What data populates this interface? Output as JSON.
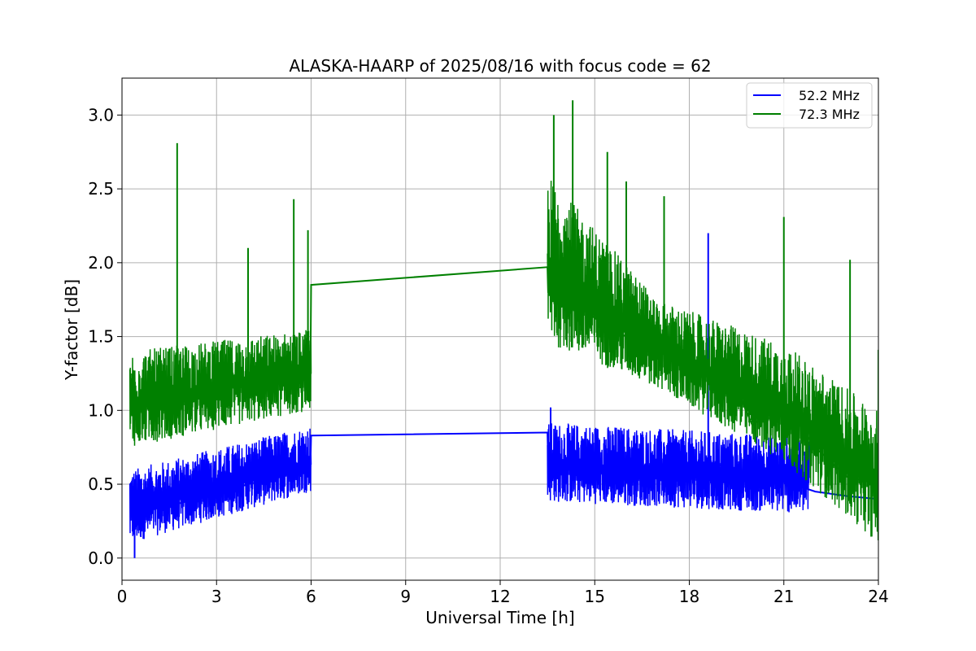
{
  "chart_data": {
    "type": "line",
    "title": "ALASKA-HAARP of 2025/08/16 with focus code = 62",
    "xlabel": "Universal Time [h]",
    "ylabel": "Y-factor [dB]",
    "xlim": [
      0,
      24
    ],
    "ylim": [
      -0.15,
      3.25
    ],
    "xticks": [
      0,
      3,
      6,
      9,
      12,
      15,
      18,
      21,
      24
    ],
    "yticks": [
      0.0,
      0.5,
      1.0,
      1.5,
      2.0,
      2.5,
      3.0
    ],
    "xtick_labels": [
      "0",
      "3",
      "6",
      "9",
      "12",
      "15",
      "18",
      "21",
      "24"
    ],
    "ytick_labels": [
      "0.0",
      "0.5",
      "1.0",
      "1.5",
      "2.0",
      "2.5",
      "3.0"
    ],
    "grid": true,
    "legend_position": "top-right",
    "series": [
      {
        "name": "52.2 MHz",
        "color": "#0000ff",
        "points": [
          [
            0.25,
            0.3
          ],
          [
            1.0,
            0.33
          ],
          [
            2.0,
            0.38
          ],
          [
            3.0,
            0.43
          ],
          [
            4.0,
            0.5
          ],
          [
            5.0,
            0.55
          ],
          [
            5.98,
            0.62
          ],
          [
            6.0,
            0.83
          ],
          [
            13.5,
            0.85
          ],
          [
            13.52,
            0.66
          ],
          [
            15.0,
            0.63
          ],
          [
            16.5,
            0.62
          ],
          [
            18.0,
            0.64
          ],
          [
            18.6,
            0.65
          ],
          [
            19.5,
            0.6
          ],
          [
            21.0,
            0.52
          ],
          [
            22.0,
            0.45
          ],
          [
            23.0,
            0.42
          ],
          [
            24.0,
            0.4
          ]
        ],
        "noise_segments": [
          {
            "x": [
              0.25,
              6.0
            ],
            "low": [
              0.1,
              0.45
            ],
            "high": [
              0.6,
              0.9
            ]
          },
          {
            "x": [
              13.5,
              21.8
            ],
            "low": [
              0.38,
              0.3
            ],
            "high": [
              0.92,
              0.82
            ]
          }
        ],
        "spikes": [
          [
            0.4,
            0.0
          ],
          [
            13.6,
            1.02
          ],
          [
            18.6,
            2.2
          ]
        ]
      },
      {
        "name": "72.3 MHz",
        "color": "#008000",
        "points": [
          [
            0.25,
            1.05
          ],
          [
            1.0,
            1.08
          ],
          [
            2.0,
            1.12
          ],
          [
            3.0,
            1.15
          ],
          [
            4.0,
            1.18
          ],
          [
            5.0,
            1.2
          ],
          [
            5.98,
            1.25
          ],
          [
            6.0,
            1.85
          ],
          [
            13.5,
            1.97
          ],
          [
            13.52,
            1.8
          ],
          [
            14.5,
            1.7
          ],
          [
            15.5,
            1.55
          ],
          [
            16.5,
            1.45
          ],
          [
            17.5,
            1.35
          ],
          [
            18.5,
            1.28
          ],
          [
            19.5,
            1.15
          ],
          [
            20.0,
            0.9
          ],
          [
            21.0,
            1.05
          ],
          [
            22.0,
            0.75
          ],
          [
            23.0,
            0.55
          ],
          [
            24.0,
            0.5
          ]
        ],
        "noise_segments": [
          {
            "x": [
              0.25,
              6.0
            ],
            "low": [
              0.75,
              1.0
            ],
            "high": [
              1.4,
              1.55
            ]
          },
          {
            "x": [
              13.5,
              17.0
            ],
            "low": [
              1.45,
              1.15
            ],
            "high": [
              2.6,
              1.75
            ]
          },
          {
            "x": [
              17.0,
              21.0
            ],
            "low": [
              1.15,
              0.65
            ],
            "high": [
              1.75,
              1.45
            ]
          },
          {
            "x": [
              21.0,
              24.0
            ],
            "low": [
              0.65,
              0.1
            ],
            "high": [
              1.45,
              1.0
            ]
          }
        ],
        "spikes": [
          [
            1.75,
            2.81
          ],
          [
            4.0,
            2.1
          ],
          [
            5.45,
            2.43
          ],
          [
            5.9,
            2.22
          ],
          [
            13.7,
            3.0
          ],
          [
            14.3,
            3.1
          ],
          [
            15.4,
            2.75
          ],
          [
            16.0,
            2.55
          ],
          [
            17.2,
            2.45
          ],
          [
            21.0,
            2.31
          ],
          [
            23.1,
            2.02
          ],
          [
            24.0,
            1.41
          ]
        ]
      }
    ]
  }
}
